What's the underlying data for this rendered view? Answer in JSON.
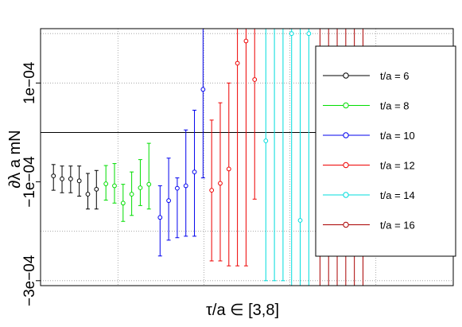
{
  "chart_data": {
    "type": "scatter",
    "xlabel": "τ/a ∈ [3,8]",
    "ylabel": "∂λ a mN",
    "ylim": [
      -0.00031,
      0.00021
    ],
    "xlim": [
      0,
      48
    ],
    "grid": true,
    "legend_position": "right",
    "y_ticks": [
      {
        "value": 0.0001,
        "label": "1e−04"
      },
      {
        "value": -0.0001,
        "label": "−1e−04"
      },
      {
        "value": -0.0003,
        "label": "−3e−04"
      }
    ],
    "y_grid": [
      0.0002,
      0.0001,
      -0.0002,
      -0.0003
    ],
    "x_grid": [
      9,
      19,
      29,
      39
    ],
    "hline": 0,
    "colors": {
      "t/a = 6": "#000000",
      "t/a = 8": "#00dd00",
      "t/a = 10": "#0000ee",
      "t/a = 12": "#ee0000",
      "t/a = 14": "#00dddd",
      "t/a = 16": "#aa0000"
    },
    "series": [
      {
        "name": "t/a = 6",
        "color": "#000000",
        "points": [
          {
            "x": 1.5,
            "y": -8.8e-05,
            "lo": -0.000117,
            "hi": -6.5e-05
          },
          {
            "x": 2.5,
            "y": -9.4e-05,
            "lo": -0.000122,
            "hi": -6.8e-05
          },
          {
            "x": 3.5,
            "y": -9.4e-05,
            "lo": -0.000122,
            "hi": -6.8e-05
          },
          {
            "x": 4.5,
            "y": -9.8e-05,
            "lo": -0.000129,
            "hi": -6.8e-05
          },
          {
            "x": 5.5,
            "y": -0.000125,
            "lo": -0.000155,
            "hi": -8.3e-05
          },
          {
            "x": 6.5,
            "y": -0.000115,
            "lo": -0.000155,
            "hi": -7.7e-05
          }
        ]
      },
      {
        "name": "t/a = 8",
        "color": "#00dd00",
        "points": [
          {
            "x": 7.6,
            "y": -0.000104,
            "lo": -0.000137,
            "hi": -6.7e-05
          },
          {
            "x": 8.6,
            "y": -0.000108,
            "lo": -0.000143,
            "hi": -6.3e-05
          },
          {
            "x": 9.6,
            "y": -0.000143,
            "lo": -0.00018,
            "hi": -0.000105
          },
          {
            "x": 10.6,
            "y": -0.000125,
            "lo": -0.000168,
            "hi": -8e-05
          },
          {
            "x": 11.6,
            "y": -0.000112,
            "lo": -0.000148,
            "hi": -5.5e-05
          },
          {
            "x": 12.6,
            "y": -0.000105,
            "lo": -0.000155,
            "hi": -2.2e-05
          }
        ]
      },
      {
        "name": "t/a = 10",
        "color": "#0000ee",
        "points": [
          {
            "x": 13.9,
            "y": -0.000172,
            "lo": -0.00025,
            "hi": -0.000108
          },
          {
            "x": 14.9,
            "y": -0.000138,
            "lo": -0.000218,
            "hi": -5.2e-05
          },
          {
            "x": 15.9,
            "y": -0.000113,
            "lo": -0.000213,
            "hi": -9.2e-05
          },
          {
            "x": 16.9,
            "y": -0.000108,
            "lo": -0.00021,
            "hi": 5e-06
          },
          {
            "x": 17.9,
            "y": -8e-05,
            "lo": -0.00021,
            "hi": 4.5e-05
          },
          {
            "x": 18.9,
            "y": 8.7e-05,
            "lo": -9.2e-05,
            "hi": 0.000225
          }
        ]
      },
      {
        "name": "t/a = 12",
        "color": "#ee0000",
        "points": [
          {
            "x": 19.9,
            "y": -0.000117,
            "lo": -0.00026,
            "hi": 2.5e-05
          },
          {
            "x": 20.9,
            "y": -0.000103,
            "lo": -0.00026,
            "hi": 6e-05
          },
          {
            "x": 21.9,
            "y": -7.4e-05,
            "lo": -0.00027,
            "hi": 0.0001
          },
          {
            "x": 22.9,
            "y": 0.00014,
            "lo": -0.00027,
            "hi": 0.000225
          },
          {
            "x": 23.9,
            "y": 0.000185,
            "lo": -0.00027,
            "hi": 0.000225
          },
          {
            "x": 24.9,
            "y": 0.000107,
            "lo": -0.000135,
            "hi": 0.000225
          }
        ]
      },
      {
        "name": "t/a = 14",
        "color": "#00dddd",
        "points": [
          {
            "x": 26.2,
            "y": -1.7e-05,
            "lo": -0.0003,
            "hi": 0.000225
          },
          {
            "x": 27.2,
            "y": 0.000225,
            "lo": -0.0003,
            "hi": 0.000225
          },
          {
            "x": 28.2,
            "y": 0.000225,
            "lo": -0.0003,
            "hi": 0.000225
          },
          {
            "x": 29.2,
            "y": 0.0002,
            "lo": -0.00031,
            "hi": 0.000225
          },
          {
            "x": 30.2,
            "y": -0.000178,
            "lo": -0.00031,
            "hi": 0.000225
          },
          {
            "x": 31.2,
            "y": 0.0002,
            "lo": -0.00031,
            "hi": 0.000225
          }
        ]
      },
      {
        "name": "t/a = 16",
        "color": "#aa0000",
        "points": [
          {
            "x": 32.5,
            "y": 0.000225,
            "lo": -0.00031,
            "hi": 0.000225
          },
          {
            "x": 33.5,
            "y": 0.000225,
            "lo": -0.00031,
            "hi": 0.000225
          },
          {
            "x": 34.5,
            "y": 0.000225,
            "lo": -0.00031,
            "hi": 0.000225
          },
          {
            "x": 35.5,
            "y": 0.000225,
            "lo": -0.00031,
            "hi": 0.000225
          },
          {
            "x": 36.5,
            "y": 0.000225,
            "lo": -0.00031,
            "hi": 0.000225
          },
          {
            "x": 37.5,
            "y": 0.000225,
            "lo": -0.00031,
            "hi": 0.000225
          }
        ]
      }
    ],
    "legend": [
      {
        "label": "t/a = 6",
        "color": "#000000"
      },
      {
        "label": "t/a = 8",
        "color": "#00dd00"
      },
      {
        "label": "t/a = 10",
        "color": "#0000ee"
      },
      {
        "label": "t/a = 12",
        "color": "#ee0000"
      },
      {
        "label": "t/a = 14",
        "color": "#00dddd"
      },
      {
        "label": "t/a = 16",
        "color": "#aa0000"
      }
    ]
  }
}
